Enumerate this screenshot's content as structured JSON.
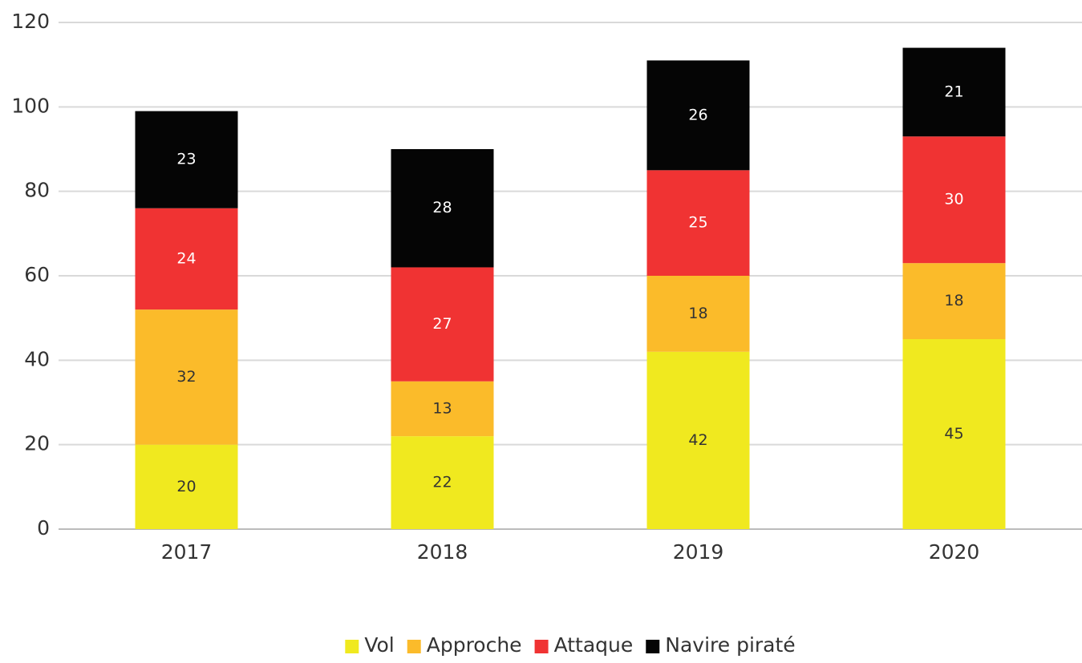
{
  "chart_data": {
    "type": "stacked_bar",
    "categories": [
      "2017",
      "2018",
      "2019",
      "2020"
    ],
    "series": [
      {
        "name": "Vol",
        "color": "#f0e91f",
        "label_color": "#333333",
        "values": [
          20,
          22,
          42,
          45
        ]
      },
      {
        "name": "Approche",
        "color": "#fbbb2a",
        "label_color": "#333333",
        "values": [
          32,
          13,
          18,
          18
        ]
      },
      {
        "name": "Attaque",
        "color": "#f03333",
        "label_color": "#ffffff",
        "values": [
          24,
          27,
          25,
          30
        ]
      },
      {
        "name": "Navire piraté",
        "color": "#050505",
        "label_color": "#ffffff",
        "values": [
          23,
          28,
          26,
          21
        ]
      }
    ],
    "ylim": [
      0,
      120
    ],
    "yticks": [
      0,
      20,
      40,
      60,
      80,
      100,
      120
    ],
    "grid": true,
    "legend": "bottom"
  }
}
